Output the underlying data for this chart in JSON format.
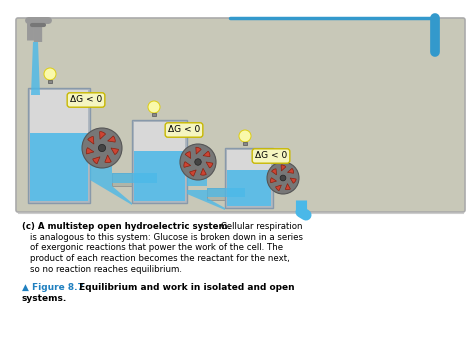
{
  "bg_color": "#f0f0f0",
  "main_bg": "#c8c8b8",
  "water_color": "#4ab8e8",
  "tank_color": "#d8d8d8",
  "tank_color2": "#b0b8c0",
  "label_bg": "#f5f5c0",
  "label_border": "#c8b800",
  "label_text": "ΔG < 0",
  "caption_bold": "(c) A multistep open hydroelectric system.",
  "figure_label_color": "#2080c0",
  "figure_label": "▲ Figure 8.7",
  "line_color": "#3399cc",
  "outer_border": "#aaaaaa",
  "page_bg": "#ffffff",
  "caption_lines": [
    "is analogous to this system: Glucose is broken down in a series",
    "of exergonic reactions that power the work of the cell. The",
    "product of each reaction becomes the reactant for the next,",
    "so no reaction reaches equilibrium."
  ],
  "fig_title_line1": " Equilibrium and work in isolated and open",
  "fig_title_line2": "systems."
}
